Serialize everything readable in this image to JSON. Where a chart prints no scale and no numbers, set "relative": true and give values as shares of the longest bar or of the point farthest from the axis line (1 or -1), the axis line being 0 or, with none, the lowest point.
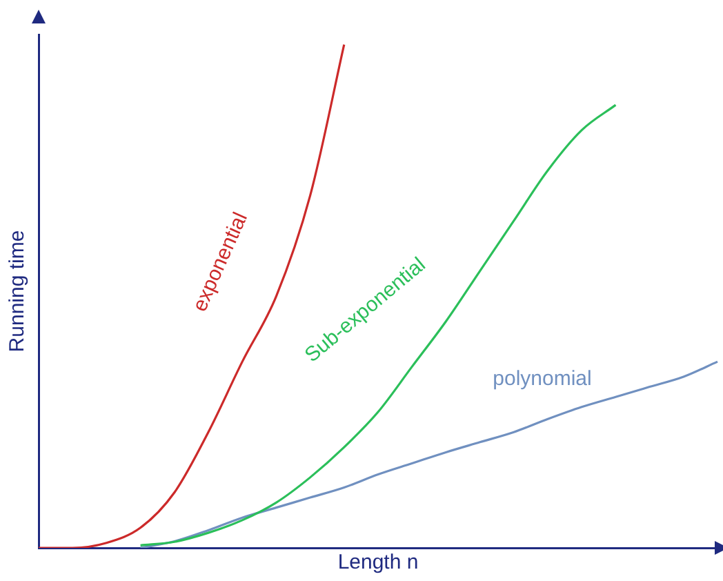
{
  "chart_data": {
    "type": "line",
    "relative": true,
    "xlabel": "Length n",
    "ylabel": "Running time",
    "marker": "none",
    "categories": [
      null,
      null,
      null,
      null,
      null,
      null,
      null,
      null,
      null,
      null,
      null,
      null,
      null,
      null,
      null,
      null,
      null,
      null,
      null,
      null,
      null
    ],
    "series": [
      {
        "name": "exponential",
        "color": "#cc2a2a",
        "values": [
          0,
          0,
          0.01,
          0.04,
          0.11,
          0.23,
          0.37,
          0.5,
          0.7,
          1,
          null,
          null,
          null,
          null,
          null,
          null,
          null,
          null,
          null,
          null,
          null
        ]
      },
      {
        "name": "Sub-exponential",
        "color": "#2bbf5a",
        "values": [
          null,
          null,
          null,
          0.005,
          0.012,
          0.03,
          0.055,
          0.09,
          0.14,
          0.2,
          0.27,
          0.36,
          0.45,
          0.55,
          0.65,
          0.75,
          0.83,
          0.88,
          null,
          null,
          null
        ]
      },
      {
        "name": "polynomial",
        "color": "#7090c0",
        "values": [
          null,
          null,
          null,
          0,
          0.013,
          0.035,
          0.06,
          0.08,
          0.1,
          0.12,
          0.146,
          0.168,
          0.19,
          0.21,
          0.23,
          0.256,
          0.28,
          0.3,
          0.32,
          0.34,
          0.37
        ]
      }
    ]
  }
}
